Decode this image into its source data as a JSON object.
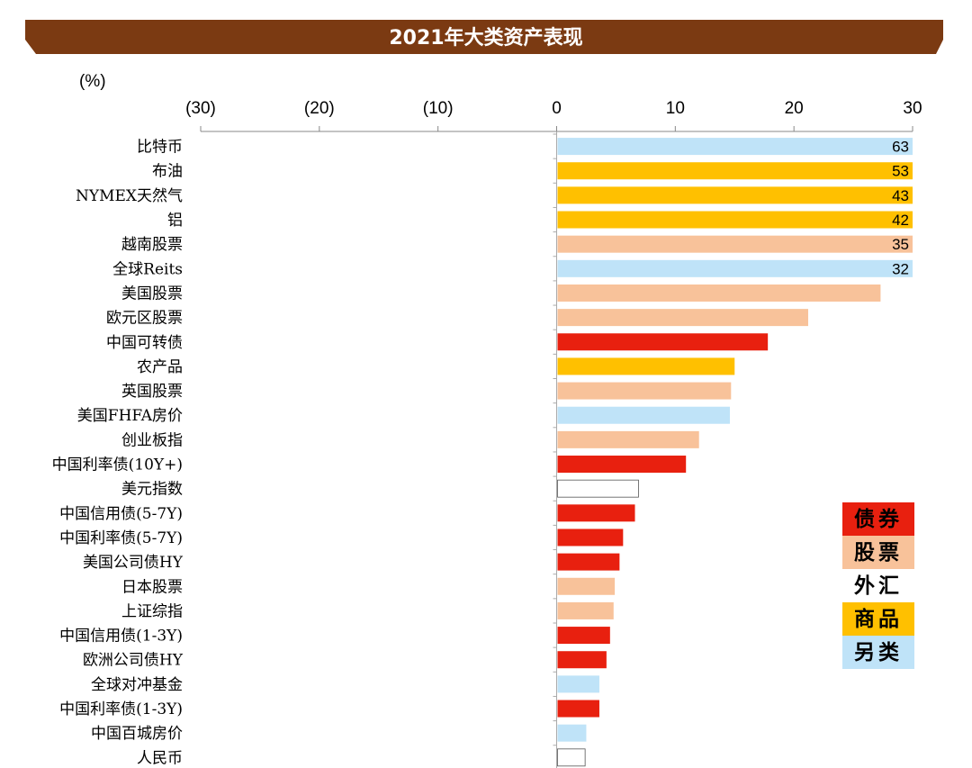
{
  "chart_data": {
    "type": "bar",
    "orientation": "horizontal",
    "title": "2021年大类资产表现",
    "unit": "(%)",
    "xlim": [
      -30,
      30
    ],
    "x_ticks": [
      "(30)",
      "(20)",
      "(10)",
      "0",
      "10",
      "20",
      "30"
    ],
    "categories": [
      "比特币",
      "布油",
      "NYMEX天然气",
      "铝",
      "越南股票",
      "全球Reits",
      "美国股票",
      "欧元区股票",
      "中国可转债",
      "农产品",
      "英国股票",
      "美国FHFA房价",
      "创业板指",
      "中国利率债(10Y+)",
      "美元指数",
      "中国信用债(5-7Y)",
      "中国利率债(5-7Y)",
      "美国公司债HY",
      "日本股票",
      "上证综指",
      "中国信用债(1-3Y)",
      "欧洲公司债HY",
      "全球对冲基金",
      "中国利率债(1-3Y)",
      "中国百城房价",
      "人民币"
    ],
    "values": [
      63,
      53,
      43,
      42,
      35,
      32,
      27.3,
      21.2,
      17.8,
      15.0,
      14.7,
      14.6,
      12.0,
      10.9,
      6.9,
      6.6,
      5.6,
      5.3,
      4.9,
      4.8,
      4.5,
      4.2,
      3.6,
      3.6,
      2.5,
      2.4
    ],
    "asset_class": [
      "另类",
      "商品",
      "商品",
      "商品",
      "股票",
      "另类",
      "股票",
      "股票",
      "债券",
      "商品",
      "股票",
      "另类",
      "股票",
      "债券",
      "外汇",
      "债券",
      "债券",
      "债券",
      "股票",
      "股票",
      "债券",
      "债券",
      "另类",
      "债券",
      "另类",
      "外汇"
    ],
    "value_labels": [
      "63",
      "53",
      "43",
      "42",
      "35",
      "32",
      "",
      "",
      "",
      "",
      "",
      "",
      "",
      "",
      "",
      "",
      "",
      "",
      "",
      "",
      "",
      "",
      "",
      "",
      "",
      ""
    ],
    "legend": [
      {
        "name": "债券",
        "color": "#e8200f"
      },
      {
        "name": "股票",
        "color": "#f8c29a"
      },
      {
        "name": "外汇",
        "color": "#ffffff"
      },
      {
        "name": "商品",
        "color": "#ffc000"
      },
      {
        "name": "另类",
        "color": "#bfe3f8"
      }
    ],
    "legend_position": "right",
    "banner_color": "#7b3a12"
  }
}
